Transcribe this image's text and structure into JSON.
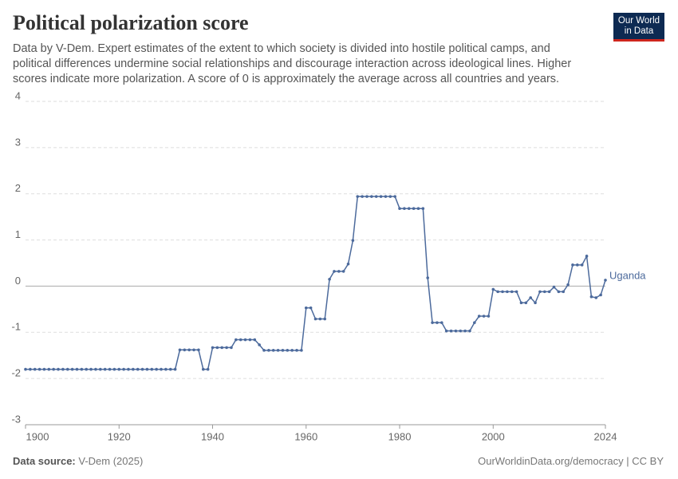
{
  "chart_data": {
    "type": "line",
    "title": "Political polarization score",
    "subtitle": "Data by V-Dem. Expert estimates of the extent to which society is divided into hostile political camps, and political differences undermine social relationships and discourage interaction across ideological lines. Higher scores indicate more polarization. A score of 0 is approximately the average across all countries and years.",
    "logo": [
      "Our World",
      "in Data"
    ],
    "source_label": "Data source:",
    "source": "V-Dem (2025)",
    "footer_right": "OurWorldinData.org/democracy | CC BY",
    "x": [
      1900,
      1901,
      1902,
      1903,
      1904,
      1905,
      1906,
      1907,
      1908,
      1909,
      1910,
      1911,
      1912,
      1913,
      1914,
      1915,
      1916,
      1917,
      1918,
      1919,
      1920,
      1921,
      1922,
      1923,
      1924,
      1925,
      1926,
      1927,
      1928,
      1929,
      1930,
      1931,
      1932,
      1933,
      1934,
      1935,
      1936,
      1937,
      1938,
      1939,
      1940,
      1941,
      1942,
      1943,
      1944,
      1945,
      1946,
      1947,
      1948,
      1949,
      1950,
      1951,
      1952,
      1953,
      1954,
      1955,
      1956,
      1957,
      1958,
      1959,
      1960,
      1961,
      1962,
      1963,
      1964,
      1965,
      1966,
      1967,
      1968,
      1969,
      1970,
      1971,
      1972,
      1973,
      1974,
      1975,
      1976,
      1977,
      1978,
      1979,
      1980,
      1981,
      1982,
      1983,
      1984,
      1985,
      1986,
      1987,
      1988,
      1989,
      1990,
      1991,
      1992,
      1993,
      1994,
      1995,
      1996,
      1997,
      1998,
      1999,
      2000,
      2001,
      2002,
      2003,
      2004,
      2005,
      2006,
      2007,
      2008,
      2009,
      2010,
      2011,
      2012,
      2013,
      2014,
      2015,
      2016,
      2017,
      2018,
      2019,
      2020,
      2021,
      2022,
      2023,
      2024
    ],
    "series": [
      {
        "name": "Uganda",
        "color": "#4c6a9c",
        "values": [
          -1.8,
          -1.8,
          -1.8,
          -1.8,
          -1.8,
          -1.8,
          -1.8,
          -1.8,
          -1.8,
          -1.8,
          -1.8,
          -1.8,
          -1.8,
          -1.8,
          -1.8,
          -1.8,
          -1.8,
          -1.8,
          -1.8,
          -1.8,
          -1.8,
          -1.8,
          -1.8,
          -1.8,
          -1.8,
          -1.8,
          -1.8,
          -1.8,
          -1.8,
          -1.8,
          -1.8,
          -1.8,
          -1.8,
          -1.38,
          -1.38,
          -1.38,
          -1.38,
          -1.38,
          -1.8,
          -1.8,
          -1.33,
          -1.33,
          -1.33,
          -1.33,
          -1.33,
          -1.16,
          -1.16,
          -1.16,
          -1.16,
          -1.16,
          -1.27,
          -1.39,
          -1.39,
          -1.39,
          -1.39,
          -1.39,
          -1.39,
          -1.39,
          -1.39,
          -1.39,
          -0.47,
          -0.47,
          -0.71,
          -0.71,
          -0.71,
          0.15,
          0.32,
          0.32,
          0.32,
          0.48,
          0.99,
          1.94,
          1.94,
          1.94,
          1.94,
          1.94,
          1.94,
          1.94,
          1.94,
          1.94,
          1.68,
          1.68,
          1.68,
          1.68,
          1.68,
          1.68,
          0.18,
          -0.79,
          -0.79,
          -0.79,
          -0.97,
          -0.97,
          -0.97,
          -0.97,
          -0.97,
          -0.97,
          -0.79,
          -0.65,
          -0.65,
          -0.65,
          -0.07,
          -0.12,
          -0.12,
          -0.12,
          -0.12,
          -0.12,
          -0.36,
          -0.36,
          -0.25,
          -0.36,
          -0.12,
          -0.12,
          -0.12,
          -0.02,
          -0.12,
          -0.12,
          0.03,
          0.46,
          0.46,
          0.46,
          0.65,
          -0.23,
          -0.25,
          -0.19,
          0.13
        ]
      }
    ],
    "xlim": [
      1900,
      2024
    ],
    "xticks": [
      1900,
      1920,
      1940,
      1960,
      1980,
      2000,
      2024
    ],
    "ylim": [
      -3,
      4
    ],
    "yticks": [
      -3,
      -2,
      -1,
      0,
      1,
      2,
      3,
      4
    ],
    "grid": true
  }
}
